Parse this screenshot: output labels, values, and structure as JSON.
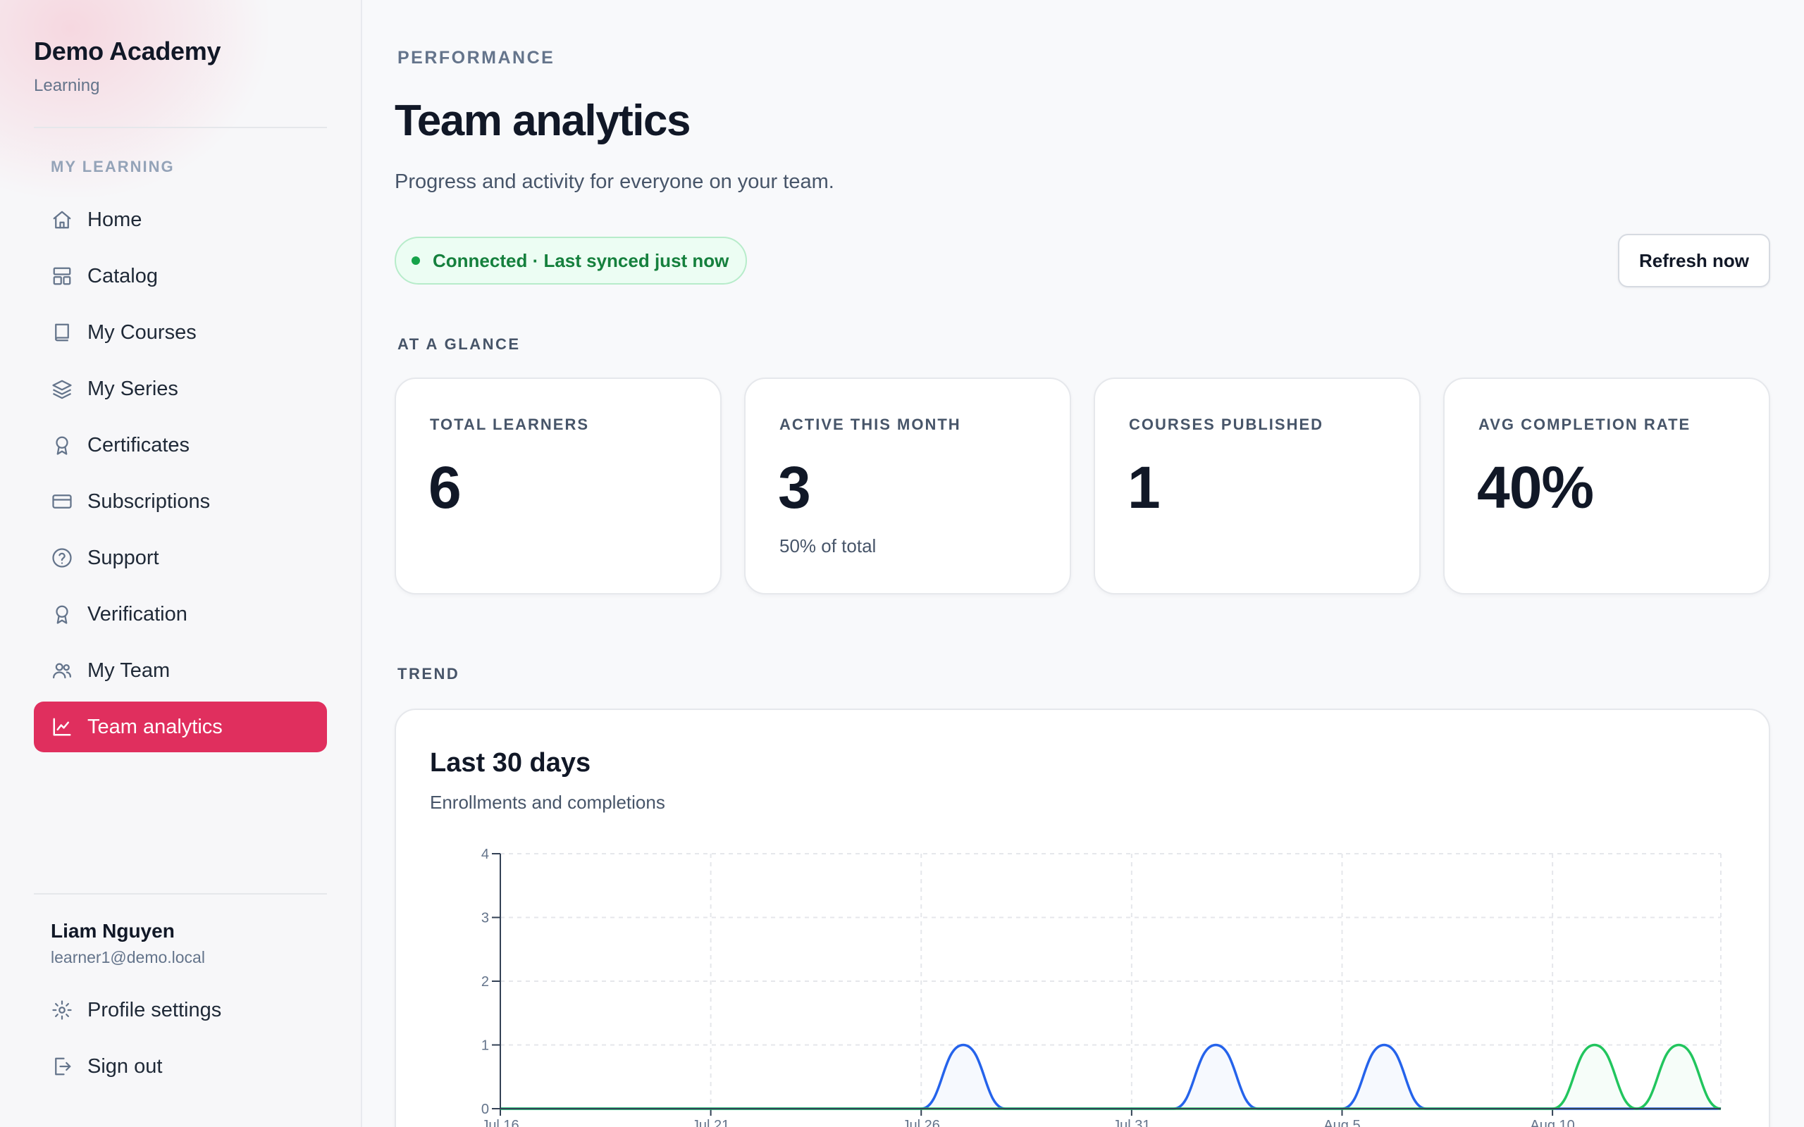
{
  "brand": {
    "name": "Demo Academy",
    "subtitle": "Learning"
  },
  "sidebar": {
    "section_label": "MY LEARNING",
    "items": [
      {
        "label": "Home",
        "icon": "home-icon"
      },
      {
        "label": "Catalog",
        "icon": "layout-icon"
      },
      {
        "label": "My Courses",
        "icon": "book-icon"
      },
      {
        "label": "My Series",
        "icon": "layers-icon"
      },
      {
        "label": "Certificates",
        "icon": "award-icon"
      },
      {
        "label": "Subscriptions",
        "icon": "credit-card-icon"
      },
      {
        "label": "Support",
        "icon": "help-circle-icon"
      },
      {
        "label": "Verification",
        "icon": "award-icon"
      },
      {
        "label": "My Team",
        "icon": "users-icon"
      },
      {
        "label": "Team analytics",
        "icon": "line-chart-icon",
        "active": true
      }
    ]
  },
  "user": {
    "name": "Liam Nguyen",
    "email": "learner1@demo.local",
    "profile_label": "Profile settings",
    "signout_label": "Sign out"
  },
  "header": {
    "eyebrow": "PERFORMANCE",
    "title": "Team analytics",
    "description": "Progress and activity for everyone on your team."
  },
  "status": {
    "text": "Connected · Last synced just now",
    "color": "#16a34a"
  },
  "refresh_label": "Refresh now",
  "glance_label": "AT A GLANCE",
  "stats": [
    {
      "label": "TOTAL LEARNERS",
      "value": "6",
      "note": ""
    },
    {
      "label": "ACTIVE THIS MONTH",
      "value": "3",
      "note": "50% of total"
    },
    {
      "label": "COURSES PUBLISHED",
      "value": "1",
      "note": ""
    },
    {
      "label": "AVG COMPLETION RATE",
      "value": "40%",
      "note": ""
    }
  ],
  "trend_label": "TREND",
  "chart": {
    "title": "Last 30 days",
    "subtitle": "Enrollments and completions"
  },
  "colors": {
    "accent": "#e02f5e",
    "enrollments": "#2563eb",
    "completions": "#22c55e"
  },
  "chart_data": {
    "type": "line",
    "title": "Last 30 days",
    "subtitle": "Enrollments and completions",
    "x": [
      "Jul 16",
      "Jul 17",
      "Jul 18",
      "Jul 19",
      "Jul 20",
      "Jul 21",
      "Jul 22",
      "Jul 23",
      "Jul 24",
      "Jul 25",
      "Jul 26",
      "Jul 27",
      "Jul 28",
      "Jul 29",
      "Jul 30",
      "Jul 31",
      "Aug 1",
      "Aug 2",
      "Aug 3",
      "Aug 4",
      "Aug 5",
      "Aug 6",
      "Aug 7",
      "Aug 8",
      "Aug 9",
      "Aug 10",
      "Aug 11",
      "Aug 12",
      "Aug 13",
      "Aug 14"
    ],
    "x_ticks": [
      "Jul 16",
      "Jul 21",
      "Jul 26",
      "Jul 31",
      "Aug 5",
      "Aug 10"
    ],
    "series": [
      {
        "color": "#2563eb",
        "values": [
          0,
          0,
          0,
          0,
          0,
          0,
          0,
          0,
          0,
          0,
          0,
          1,
          0,
          0,
          0,
          0,
          0,
          1,
          0,
          0,
          0,
          1,
          0,
          0,
          0,
          0,
          0,
          0,
          0,
          0
        ]
      },
      {
        "color": "#22c55e",
        "values": [
          0,
          0,
          0,
          0,
          0,
          0,
          0,
          0,
          0,
          0,
          0,
          0,
          0,
          0,
          0,
          0,
          0,
          0,
          0,
          0,
          0,
          0,
          0,
          0,
          0,
          0,
          1,
          0,
          1,
          0
        ]
      }
    ],
    "ylim": [
      0,
      4
    ],
    "y_ticks": [
      0,
      1,
      2,
      3,
      4
    ],
    "grid": true
  }
}
